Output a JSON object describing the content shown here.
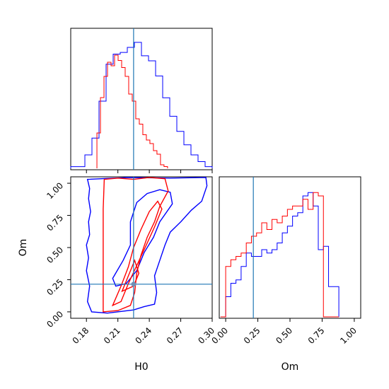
{
  "colors": {
    "series_a": "#0000ff",
    "series_b": "#ff0000",
    "truth": "#1f77b4"
  },
  "chart_data": {
    "type": "corner",
    "parameters": [
      "H0",
      "Om"
    ],
    "truth": {
      "H0": 0.225,
      "Om": 0.215
    },
    "xlabel_H0": "H0",
    "xlabel_Om": "Om",
    "ylabel_Om": "Om",
    "H0_range": [
      0.165,
      0.3
    ],
    "Om_range": [
      -0.05,
      1.05
    ],
    "H0_ticks": [
      "0.18",
      "0.21",
      "0.24",
      "0.27",
      "0.30"
    ],
    "Om_ticks": [
      "0.00",
      "0.25",
      "0.50",
      "0.75",
      "1.00"
    ],
    "panels": [
      {
        "id": "H0_marginal",
        "type": "step_histogram",
        "bin_edges_start": 0.165,
        "bin_width": 0.00675,
        "series": [
          {
            "color": "blue",
            "values": [
              1,
              1,
              8,
              18,
              40,
              62,
              68,
              69,
              72,
              75,
              67,
              64,
              55,
              42,
              31,
              22,
              14,
              8,
              4,
              1
            ]
          },
          {
            "color": "red",
            "values": [
              0,
              0,
              0,
              0,
              0,
              0,
              0,
              0,
              0,
              0,
              0,
              0,
              0,
              0,
              0,
              0,
              0,
              0,
              0,
              0
            ]
          }
        ],
        "series_red_fine": {
          "bin_edges_start": 0.19,
          "bin_width": 0.00337,
          "values": [
            20,
            40,
            52,
            60,
            58,
            64,
            61,
            57,
            52,
            42,
            38,
            28,
            25,
            19,
            16,
            14,
            10,
            8,
            2,
            1
          ]
        }
      },
      {
        "id": "Om_marginal",
        "type": "step_histogram",
        "bin_edges_start": -0.04,
        "bin_width": 0.04,
        "series": [
          {
            "color": "blue",
            "values": [
              0,
              6,
              10,
              11,
              15,
              19,
              18,
              18,
              20,
              19,
              20,
              22,
              25,
              27,
              30,
              31,
              36,
              37,
              33,
              20,
              21,
              9,
              9
            ]
          },
          {
            "color": "red",
            "values": [
              0,
              15,
              17,
              18,
              19,
              22,
              24,
              25,
              28,
              26,
              29,
              28,
              30,
              32,
              33,
              33,
              35,
              32,
              37,
              36,
              0,
              0,
              0
            ]
          }
        ]
      },
      {
        "id": "joint",
        "type": "contour",
        "x": "H0",
        "y": "Om",
        "series": [
          "blue",
          "red"
        ]
      }
    ]
  }
}
